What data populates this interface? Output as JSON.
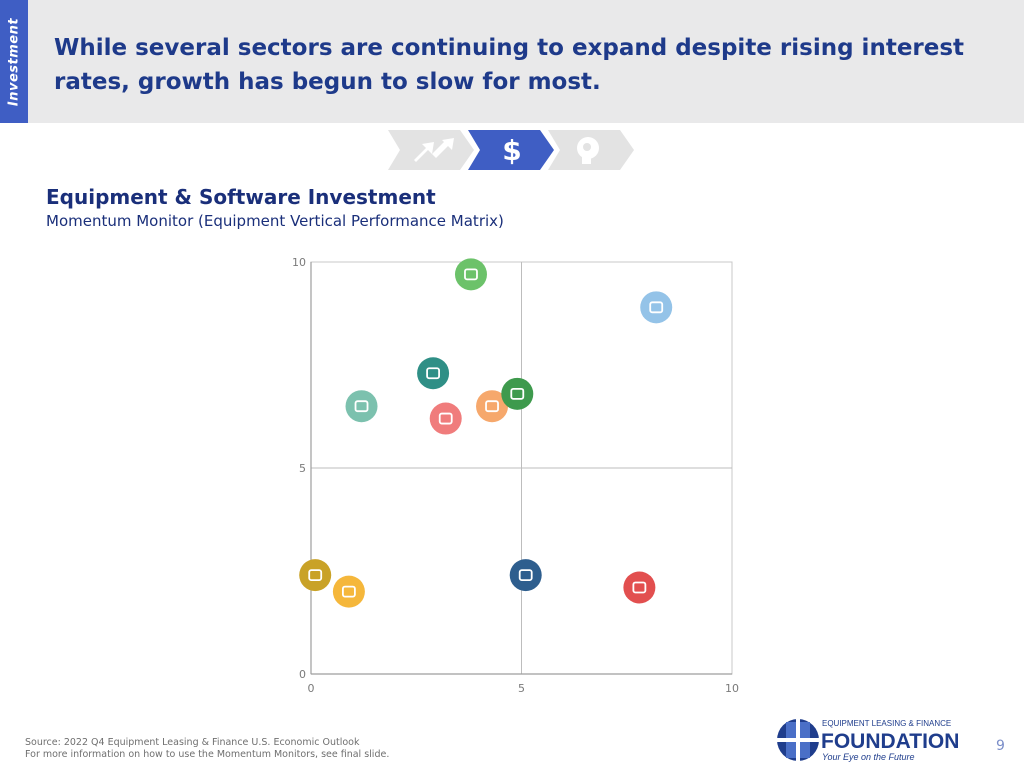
{
  "header": {
    "tab_label": "Investment",
    "headline_line1": "While several sectors are continuing to expand despite rising interest",
    "headline_line2": "rates, growth has begun to slow for most."
  },
  "steps": [
    {
      "icon": "trend-arrows-icon",
      "state": "inactive"
    },
    {
      "icon": "dollar-icon",
      "label": "$",
      "state": "active"
    },
    {
      "icon": "head-gear-icon",
      "state": "inactive"
    }
  ],
  "section": {
    "title": "Equipment & Software Investment",
    "subtitle": "Momentum Monitor (Equipment Vertical Performance Matrix)"
  },
  "chart_data": {
    "type": "scatter",
    "xlim": [
      0,
      10
    ],
    "ylim": [
      0,
      10
    ],
    "x_ticks": [
      "0",
      "5",
      "10"
    ],
    "y_ticks": [
      "0",
      "5",
      "10"
    ],
    "grid": true,
    "points": [
      {
        "icon": "medical-icon",
        "x": 3.8,
        "y": 9.7,
        "color": "#6cc26a"
      },
      {
        "icon": "aircraft-icon",
        "x": 8.2,
        "y": 8.9,
        "color": "#94c3e8"
      },
      {
        "icon": "railroad-icon",
        "x": 2.9,
        "y": 7.3,
        "color": "#2f8f86"
      },
      {
        "icon": "ships-boats-icon",
        "x": 1.2,
        "y": 6.5,
        "color": "#7cc1ae"
      },
      {
        "icon": "trucks-icon",
        "x": 3.2,
        "y": 6.2,
        "color": "#f07c7c"
      },
      {
        "icon": "construction-icon",
        "x": 4.3,
        "y": 6.5,
        "color": "#f6a86c"
      },
      {
        "icon": "mining-oilfield-icon",
        "x": 4.9,
        "y": 6.8,
        "color": "#3e9a4d"
      },
      {
        "icon": "agriculture-icon",
        "x": 0.1,
        "y": 2.4,
        "color": "#c9a227"
      },
      {
        "icon": "computers-icon",
        "x": 0.9,
        "y": 2.0,
        "color": "#f5b73b"
      },
      {
        "icon": "materials-handling-icon",
        "x": 5.1,
        "y": 2.4,
        "color": "#2e5e8e"
      },
      {
        "icon": "software-icon",
        "x": 7.8,
        "y": 2.1,
        "color": "#e24f4f"
      }
    ]
  },
  "footer": {
    "source_line1": "Source: 2022 Q4 Equipment Leasing & Finance U.S. Economic Outlook",
    "source_line2": "For more information on how to use the Momentum Monitors, see final slide."
  },
  "logo": {
    "line1": "EQUIPMENT LEASING & FINANCE",
    "line2": "FOUNDATION",
    "line3": "Your Eye on the Future"
  },
  "page_number": "9",
  "colors": {
    "brand_blue": "#3f5ec4",
    "headline_navy": "#1e3a8a",
    "header_bg": "#e9e9ea"
  }
}
